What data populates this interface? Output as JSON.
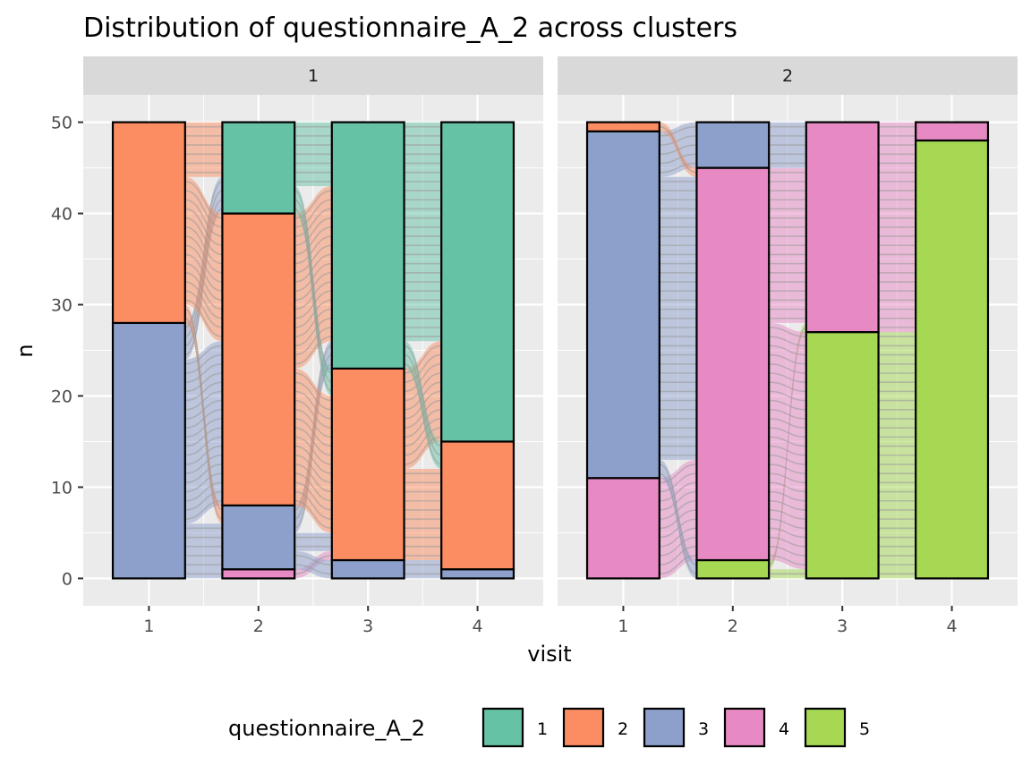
{
  "chart_data": {
    "type": "alluvial",
    "title": "Distribution of questionnaire_A_2 across clusters",
    "xlabel": "visit",
    "ylabel": "n",
    "ylim": [
      -3,
      53
    ],
    "y_ticks": [
      0,
      10,
      20,
      30,
      40,
      50
    ],
    "x_categories": [
      "1",
      "2",
      "3",
      "4"
    ],
    "legend": {
      "title": "questionnaire_A_2",
      "position": "bottom",
      "entries": [
        {
          "label": "1",
          "color": "#66C2A5"
        },
        {
          "label": "2",
          "color": "#FC8D62"
        },
        {
          "label": "3",
          "color": "#8DA0CB"
        },
        {
          "label": "4",
          "color": "#E78AC3"
        },
        {
          "label": "5",
          "color": "#A6D854"
        }
      ]
    },
    "panels": [
      {
        "label": "1",
        "stacks": {
          "1": {
            "5": 0,
            "4": 0,
            "3": 28,
            "2": 22,
            "1": 0
          },
          "2": {
            "5": 0,
            "4": 1,
            "3": 7,
            "2": 32,
            "1": 10
          },
          "3": {
            "5": 0,
            "4": 0,
            "3": 2,
            "2": 21,
            "1": 27
          },
          "4": {
            "5": 0,
            "4": 0,
            "3": 1,
            "2": 14,
            "1": 35
          }
        },
        "flows": [
          {
            "from_visit": "1",
            "to_visit": "2",
            "pairs": [
              {
                "from": "3",
                "to": "4",
                "n": 1
              },
              {
                "from": "3",
                "to": "3",
                "n": 5
              },
              {
                "from": "3",
                "to": "2",
                "n": 18
              },
              {
                "from": "3",
                "to": "1",
                "n": 4
              },
              {
                "from": "2",
                "to": "3",
                "n": 2
              },
              {
                "from": "2",
                "to": "2",
                "n": 14
              },
              {
                "from": "2",
                "to": "1",
                "n": 6
              }
            ]
          },
          {
            "from_visit": "2",
            "to_visit": "3",
            "pairs": [
              {
                "from": "4",
                "to": "2",
                "n": 1
              },
              {
                "from": "3",
                "to": "3",
                "n": 2
              },
              {
                "from": "3",
                "to": "2",
                "n": 2
              },
              {
                "from": "3",
                "to": "1",
                "n": 3
              },
              {
                "from": "2",
                "to": "2",
                "n": 15
              },
              {
                "from": "2",
                "to": "1",
                "n": 17
              },
              {
                "from": "1",
                "to": "2",
                "n": 3
              },
              {
                "from": "1",
                "to": "1",
                "n": 7
              }
            ]
          },
          {
            "from_visit": "3",
            "to_visit": "4",
            "pairs": [
              {
                "from": "3",
                "to": "3",
                "n": 1
              },
              {
                "from": "3",
                "to": "2",
                "n": 1
              },
              {
                "from": "2",
                "to": "2",
                "n": 10
              },
              {
                "from": "2",
                "to": "1",
                "n": 11
              },
              {
                "from": "1",
                "to": "2",
                "n": 3
              },
              {
                "from": "1",
                "to": "1",
                "n": 24
              }
            ]
          }
        ]
      },
      {
        "label": "2",
        "stacks": {
          "1": {
            "5": 0,
            "4": 11,
            "3": 38,
            "2": 1,
            "1": 0
          },
          "2": {
            "5": 2,
            "4": 43,
            "3": 5,
            "2": 0,
            "1": 0
          },
          "3": {
            "5": 27,
            "4": 23,
            "3": 0,
            "2": 0,
            "1": 0
          },
          "4": {
            "5": 48,
            "4": 2,
            "3": 0,
            "2": 0,
            "1": 0
          }
        },
        "flows": [
          {
            "from_visit": "1",
            "to_visit": "2",
            "pairs": [
              {
                "from": "4",
                "to": "4",
                "n": 11
              },
              {
                "from": "3",
                "to": "5",
                "n": 2
              },
              {
                "from": "3",
                "to": "4",
                "n": 31
              },
              {
                "from": "3",
                "to": "3",
                "n": 5
              },
              {
                "from": "2",
                "to": "4",
                "n": 1
              }
            ]
          },
          {
            "from_visit": "2",
            "to_visit": "3",
            "pairs": [
              {
                "from": "5",
                "to": "5",
                "n": 1
              },
              {
                "from": "5",
                "to": "4",
                "n": 1
              },
              {
                "from": "4",
                "to": "5",
                "n": 26
              },
              {
                "from": "4",
                "to": "4",
                "n": 17
              },
              {
                "from": "3",
                "to": "4",
                "n": 5
              }
            ]
          },
          {
            "from_visit": "3",
            "to_visit": "4",
            "pairs": [
              {
                "from": "5",
                "to": "5",
                "n": 27
              },
              {
                "from": "4",
                "to": "5",
                "n": 21
              },
              {
                "from": "4",
                "to": "4",
                "n": 2
              }
            ]
          }
        ]
      }
    ]
  }
}
